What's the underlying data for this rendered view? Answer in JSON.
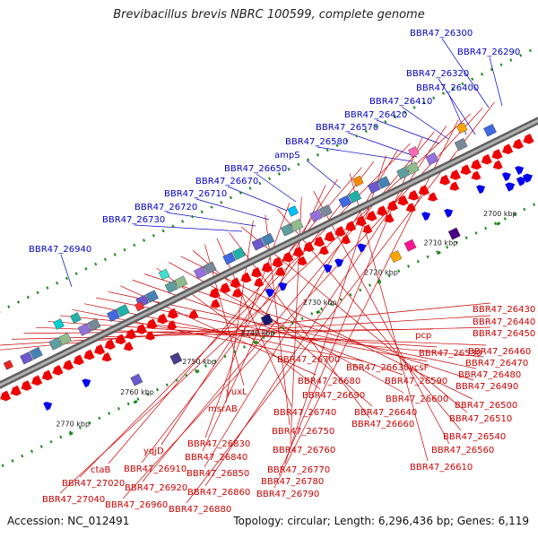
{
  "title": "Brevibacillus brevis NBRC 100599, complete genome",
  "footer": {
    "accession": "Accession: NC_012491",
    "topology": "Topology: circular; Length: 6,296,436 bp; Genes: 6,119"
  },
  "colors": {
    "top_label": "#0000cc",
    "bottom_label": "#cc0000",
    "forward_gene": "#0000ee",
    "reverse_gene": "#ee0000",
    "backbone": "#8a8a8a",
    "tick": "#1a8a1a"
  },
  "ticks": [
    "2770 kbp",
    "2760 kbp",
    "2750 kbp",
    "2740 kbp",
    "2730 kbp",
    "2720 kbp",
    "2710 kbp",
    "2700 kbp"
  ],
  "top_labels": [
    "BBR47_26300",
    "BBR47_26290",
    "BBR47_26320",
    "BBR47_26400",
    "BBR47_26410",
    "BBR47_26420",
    "BBR47_26570",
    "BBR47_26580",
    "ampS",
    "BBR47_26650",
    "BBR47_26670",
    "BBR47_26710",
    "BBR47_26720",
    "BBR47_26730",
    "BBR47_26940"
  ],
  "bottom_labels": [
    "BBR47_26430",
    "BBR47_26440",
    "BBR47_26450",
    "pcp",
    "BBR47_26460",
    "BBR47_26530",
    "BBR47_26470",
    "BBR47_26700",
    "BBR47_26630",
    "ycsF",
    "BBR47_26480",
    "BBR47_26680",
    "BBR47_26590",
    "BBR47_26490",
    "BBR47_26690",
    "BBR47_26600",
    "BBR47_26500",
    "BBR47_26640",
    "yuxL",
    "BBR47_26740",
    "BBR47_26660",
    "BBR47_26510",
    "msrAB",
    "BBR47_26750",
    "BBR47_26540",
    "BBR47_26830",
    "BBR47_26760",
    "BBR47_26560",
    "BBR47_26840",
    "yqjD",
    "BBR47_26610",
    "ctaB",
    "BBR47_26910",
    "BBR47_26770",
    "BBR47_26850",
    "BBR47_27020",
    "BBR47_26780",
    "BBR47_26920",
    "BBR47_26860",
    "BBR47_26790",
    "BBR47_27040",
    "BBR47_26960",
    "BBR47_26880"
  ]
}
